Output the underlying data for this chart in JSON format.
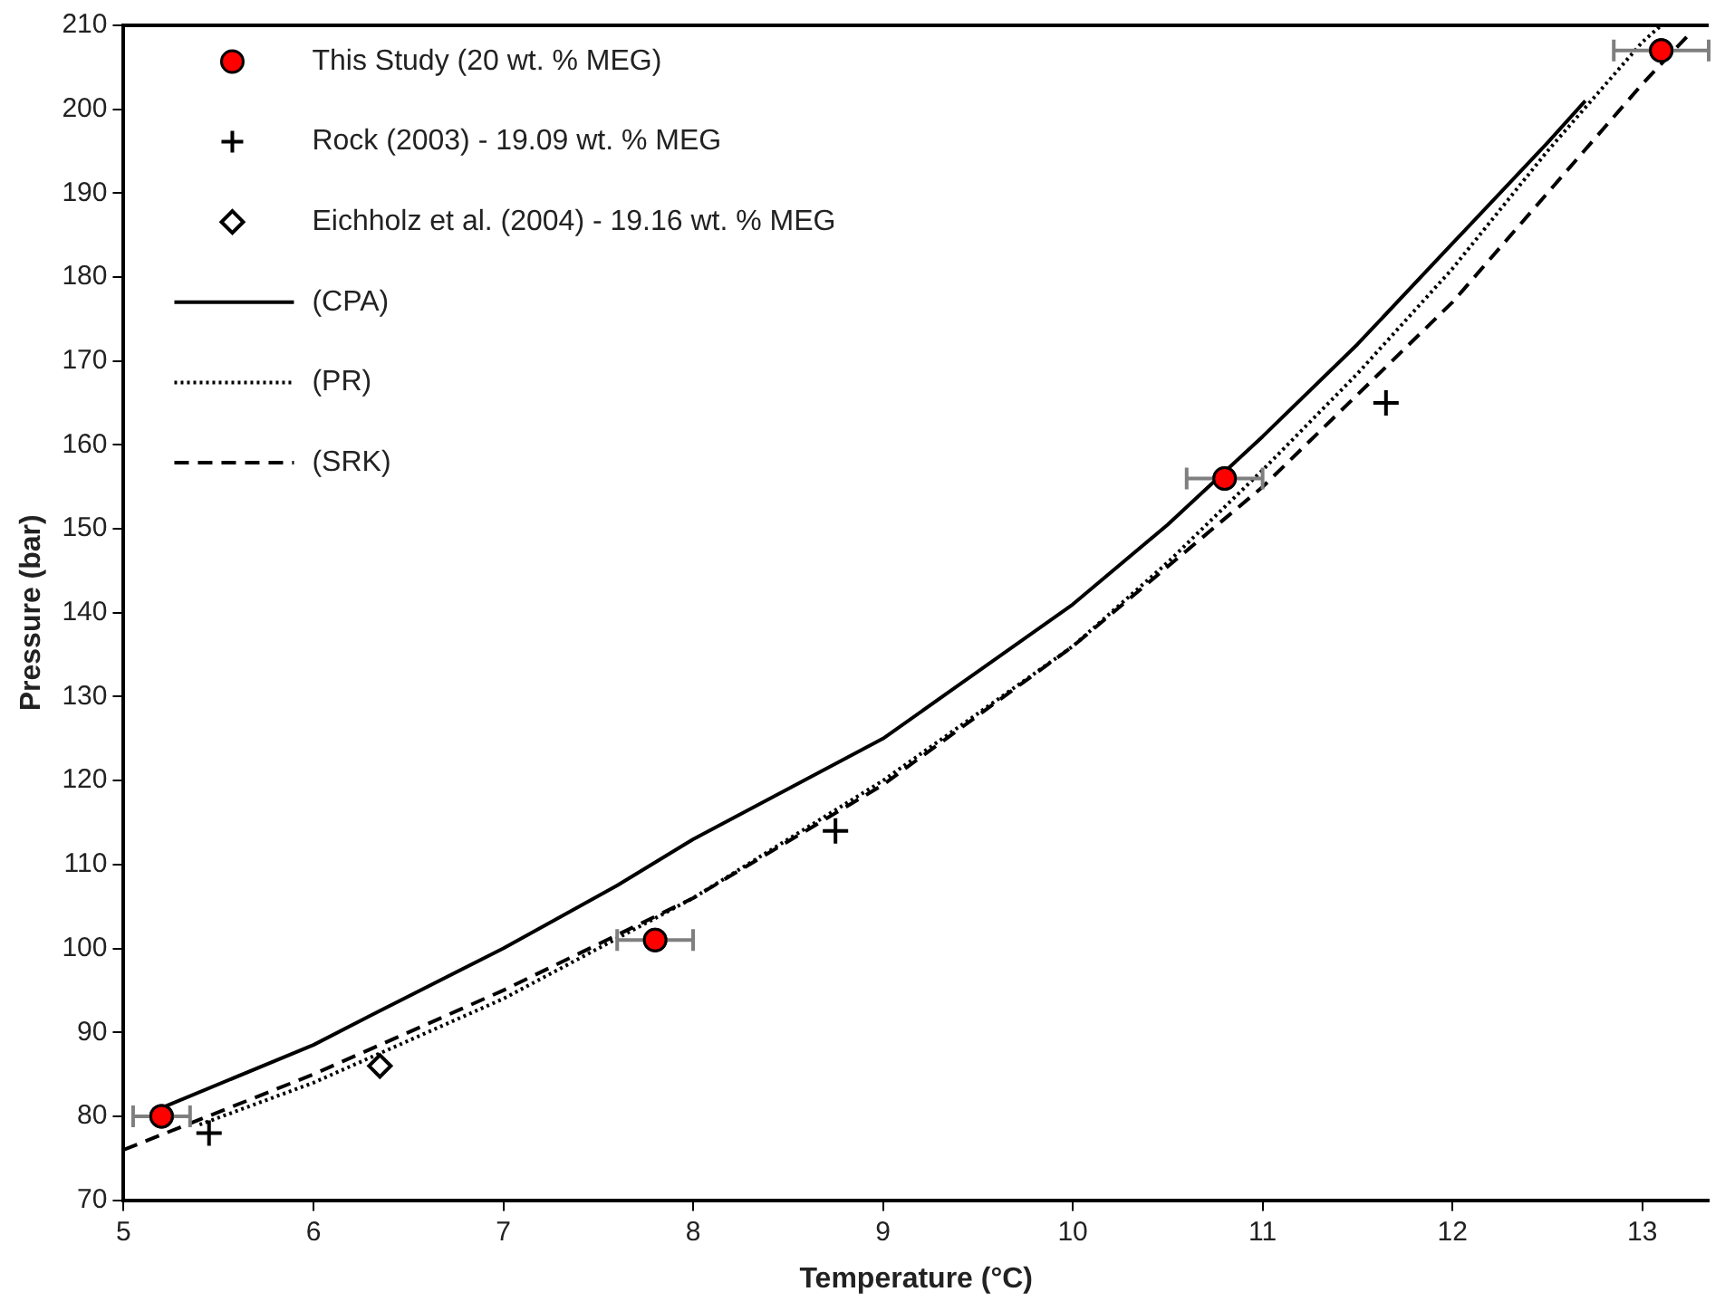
{
  "chart_data": {
    "type": "scatter",
    "xlabel": "Temperature (°C)",
    "ylabel": "Pressure (bar)",
    "xlim": [
      5,
      13.35
    ],
    "ylim": [
      70,
      210
    ],
    "xticks": [
      5,
      6,
      7,
      8,
      9,
      10,
      11,
      12,
      13
    ],
    "yticks": [
      70,
      80,
      90,
      100,
      110,
      120,
      130,
      140,
      150,
      160,
      170,
      180,
      190,
      200,
      210
    ],
    "grid": false,
    "legend": "top left",
    "series": [
      {
        "name": "This Study (20 wt. % MEG)",
        "marker": "circle",
        "color": "#ff0000",
        "x": [
          5.2,
          7.8,
          10.8,
          13.1
        ],
        "values": [
          80,
          101,
          156,
          207
        ],
        "xerrors": [
          0.15,
          0.2,
          0.2,
          0.25
        ]
      },
      {
        "name": "Rock (2003) - 19.09 wt. % MEG",
        "marker": "cross",
        "color": "#000000",
        "x": [
          5.45,
          8.75,
          11.65
        ],
        "values": [
          78,
          114,
          165
        ]
      },
      {
        "name": "Eichholz et al. (2004) - 19.16 wt. % MEG",
        "marker": "diamond",
        "color": "#000000",
        "x": [
          6.35
        ],
        "values": [
          86
        ]
      },
      {
        "name": "(CPA)",
        "type": "line",
        "marker": "none",
        "line_style": "solid",
        "color": "#000000",
        "x": [
          5.2,
          6,
          6.3,
          7,
          7.6,
          8,
          9,
          10,
          10.5,
          11,
          11.5,
          12,
          12.5,
          12.7
        ],
        "values": [
          81,
          88.5,
          92,
          100,
          107.5,
          113,
          125,
          141,
          150.5,
          161,
          172,
          184,
          196,
          201
        ]
      },
      {
        "name": "(PR)",
        "type": "line",
        "marker": "none",
        "line_style": "dotted",
        "color": "#000000",
        "x": [
          5.4,
          6,
          7,
          8,
          9,
          10,
          10.5,
          11,
          11.5,
          12,
          12.5,
          13,
          13.1
        ],
        "values": [
          79,
          84,
          94,
          106,
          120,
          136,
          146,
          157,
          168.5,
          181,
          195,
          208,
          210
        ]
      },
      {
        "name": "(SRK)",
        "type": "line",
        "marker": "none",
        "line_style": "dashed",
        "color": "#000000",
        "x": [
          5,
          6,
          7,
          8,
          9,
          10,
          11,
          11.5,
          12,
          12.5,
          13,
          13.25
        ],
        "values": [
          76,
          85,
          95,
          106,
          119.5,
          136,
          155,
          166,
          177,
          190,
          203,
          209
        ]
      }
    ]
  }
}
